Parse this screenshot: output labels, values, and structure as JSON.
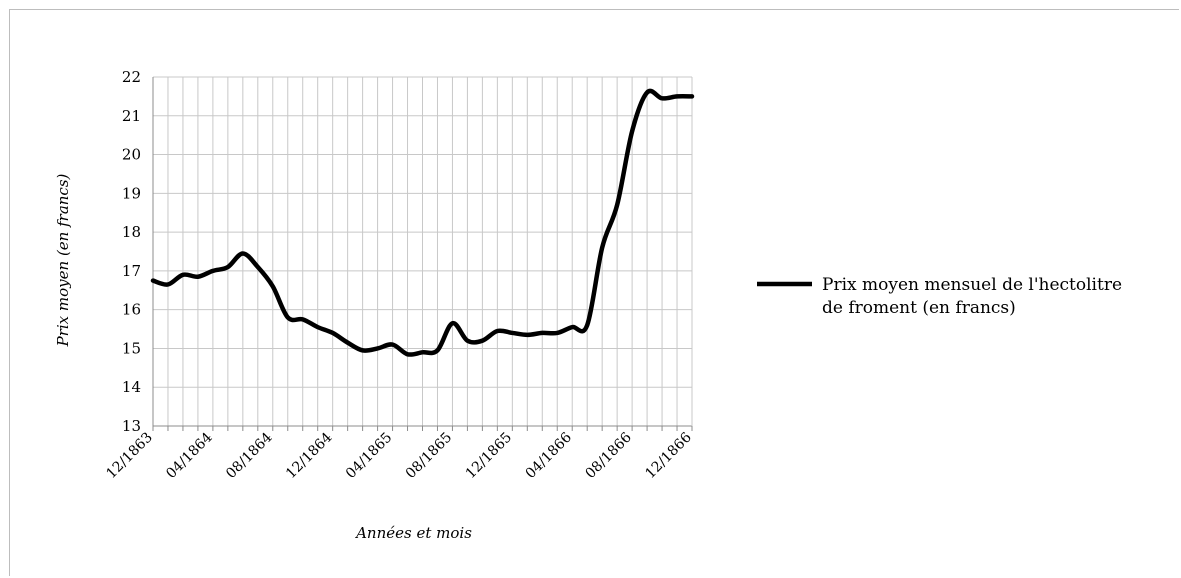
{
  "chart_data": {
    "type": "line",
    "title": "",
    "xlabel": "Années et mois",
    "ylabel": "Prix moyen (en francs)",
    "ylim": [
      13,
      22
    ],
    "yticks": [
      13,
      14,
      15,
      16,
      17,
      18,
      19,
      20,
      21,
      22
    ],
    "grid": true,
    "legend_position": "right",
    "x_tick_labels": [
      "12/1863",
      "04/1864",
      "08/1864",
      "12/1864",
      "04/1865",
      "08/1865",
      "12/1865",
      "04/1866",
      "08/1866",
      "12/1866"
    ],
    "months": [
      "12/1863",
      "01/1864",
      "02/1864",
      "03/1864",
      "04/1864",
      "05/1864",
      "06/1864",
      "07/1864",
      "08/1864",
      "09/1864",
      "10/1864",
      "11/1864",
      "12/1864",
      "01/1865",
      "02/1865",
      "03/1865",
      "04/1865",
      "05/1865",
      "06/1865",
      "07/1865",
      "08/1865",
      "09/1865",
      "10/1865",
      "11/1865",
      "12/1865",
      "01/1866",
      "02/1866",
      "03/1866",
      "04/1866",
      "05/1866",
      "06/1866",
      "07/1866",
      "08/1866",
      "09/1866",
      "10/1866",
      "11/1866",
      "12/1866"
    ],
    "series": [
      {
        "name": "Prix moyen mensuel de l'hectolitre de froment (en francs)",
        "color": "#000000",
        "values": [
          16.75,
          16.65,
          16.9,
          16.85,
          17.0,
          17.1,
          17.45,
          17.1,
          16.6,
          15.8,
          15.75,
          15.55,
          15.4,
          15.15,
          14.95,
          15.0,
          15.1,
          14.85,
          14.9,
          14.95,
          15.65,
          15.2,
          15.2,
          15.45,
          15.4,
          15.35,
          15.4,
          15.4,
          15.55,
          15.6,
          17.6,
          18.7,
          20.6,
          21.6,
          21.45,
          21.5,
          21.5
        ]
      }
    ]
  }
}
